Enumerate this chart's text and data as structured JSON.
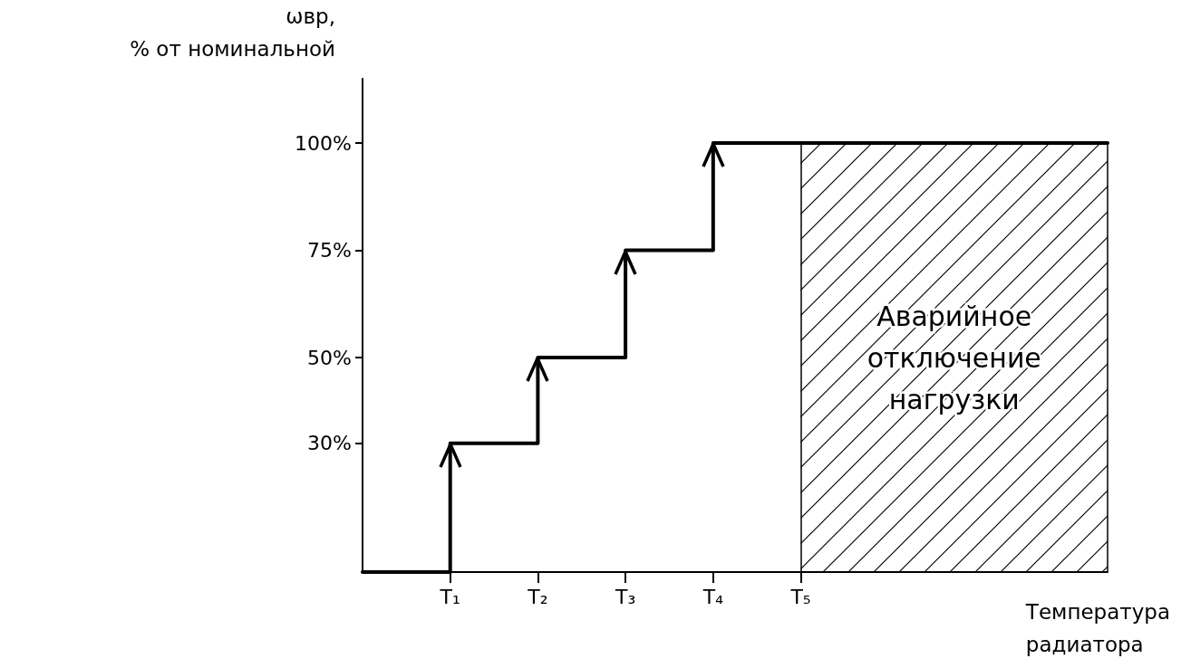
{
  "chart_data": {
    "type": "step",
    "ylabel": "ωвр,\n% от номинальной",
    "xlabel": "Температура\nрадиатора",
    "categories": [
      null,
      null,
      "T₁",
      null,
      "T₂",
      null,
      "T₃",
      null,
      "T₄",
      null,
      "T₅",
      null,
      null,
      null,
      null,
      null,
      null,
      null
    ],
    "series": [
      {
        "color": "#000000",
        "values": [
          0,
          0,
          30,
          30,
          50,
          50,
          75,
          75,
          100,
          100,
          100,
          100,
          100,
          100,
          100,
          100,
          100,
          100
        ]
      },
      {
        "type": "area",
        "color": "#000000",
        "values": [
          null,
          null,
          null,
          null,
          null,
          null,
          null,
          null,
          null,
          null,
          100,
          100,
          100,
          100,
          100,
          100,
          100,
          100
        ]
      }
    ],
    "ylim": [
      0,
      115
    ],
    "yticks": [
      {
        "value": 30,
        "label": "30%"
      },
      {
        "value": 50,
        "label": "50%"
      },
      {
        "value": 75,
        "label": "75%"
      },
      {
        "value": 100,
        "label": "100%"
      }
    ],
    "annotations": [
      "Аварийное\nотключение\nнагрузки"
    ],
    "marker": "none",
    "line_style": "solid"
  }
}
